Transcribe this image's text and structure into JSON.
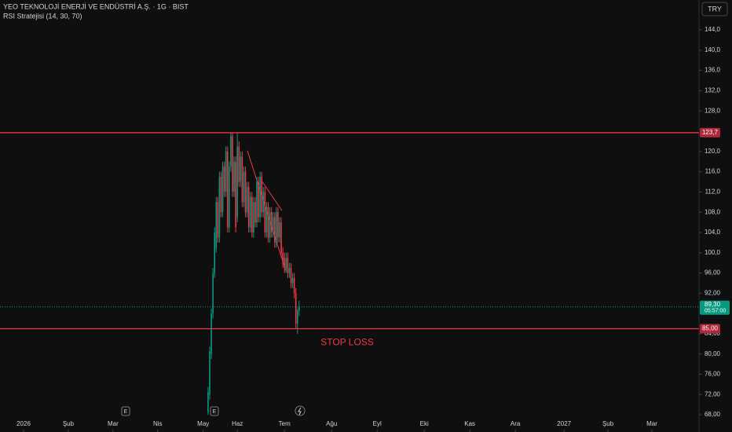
{
  "chart_data": {
    "type": "candlestick",
    "title": "YEO TEKNOLOJİ ENERJİ VE ENDÜSTRİ A.Ş. · 1G · BIST",
    "subtitle": "RSI Stratejisi (14, 30, 70)",
    "currency": "TRY",
    "up_color": "#089981",
    "down_color": "#f23645",
    "grid": false,
    "x": [
      128,
      129,
      130,
      131,
      132,
      133,
      134,
      135,
      136,
      137,
      138,
      139,
      140,
      141,
      142,
      143,
      144,
      145,
      146,
      147,
      148,
      149,
      150,
      151,
      152,
      153,
      154,
      155,
      156,
      157,
      158,
      159,
      160,
      161,
      162,
      163,
      164,
      165,
      166,
      167,
      168,
      169,
      170,
      171,
      172,
      173,
      174,
      175,
      176,
      177,
      178,
      179,
      180,
      181,
      182,
      183,
      184
    ],
    "open": [
      68.5,
      72,
      80,
      88,
      96,
      101,
      110,
      103,
      115,
      108,
      117,
      112,
      120,
      105,
      117,
      123,
      112,
      118,
      107,
      121,
      114,
      119,
      110,
      116,
      108,
      113,
      105,
      111,
      104,
      110,
      106,
      114,
      107,
      115,
      108,
      112,
      104,
      109,
      103,
      108,
      104,
      107,
      102,
      108,
      103,
      106,
      100,
      99,
      97,
      99,
      96,
      97,
      94,
      95,
      92,
      86,
      88.5
    ],
    "high": [
      73.5,
      81.5,
      89,
      97,
      105,
      111,
      111,
      116,
      116,
      118,
      118,
      121,
      121,
      118,
      123.7,
      123.7,
      119,
      119,
      123.7,
      122,
      120,
      120,
      117,
      117,
      114,
      114,
      112,
      112,
      111,
      111,
      115,
      115,
      116,
      116,
      113,
      113,
      110,
      110,
      109,
      109,
      108,
      108,
      109,
      109,
      107,
      107,
      101,
      100,
      100,
      100,
      98,
      98,
      96,
      96,
      93,
      89,
      90.5
    ],
    "low": [
      68,
      71,
      79,
      87,
      95,
      100,
      102,
      102,
      107,
      107,
      111,
      111,
      104,
      104,
      116,
      111,
      111,
      104,
      106,
      113,
      113,
      109,
      109,
      107,
      107,
      104,
      104,
      103,
      103,
      105,
      105,
      106,
      106,
      107,
      107,
      103,
      103,
      102,
      102,
      103,
      103,
      101,
      101,
      102,
      102,
      99,
      97,
      96,
      96,
      95,
      95,
      93,
      93,
      91,
      85,
      84,
      87.5
    ],
    "close": [
      72.5,
      80.5,
      88,
      96,
      104,
      110,
      103,
      115,
      108,
      117,
      112,
      120,
      105,
      117,
      123,
      112,
      118,
      105,
      121,
      114,
      119,
      110,
      116,
      108,
      113,
      105,
      111,
      104,
      110,
      106,
      114,
      107,
      115,
      108,
      112,
      104,
      109,
      103,
      108,
      104,
      107,
      102,
      108,
      103,
      106,
      100,
      98,
      97,
      99,
      96,
      97,
      94,
      95,
      92,
      86,
      88.5,
      89.3
    ],
    "xlim": [
      0,
      430
    ],
    "ylim": [
      64.6,
      149.9
    ],
    "xticks": [
      {
        "value": 14.5,
        "label": "2026"
      },
      {
        "value": 42,
        "label": "Şub"
      },
      {
        "value": 69.5,
        "label": "Mar"
      },
      {
        "value": 97,
        "label": "Nis"
      },
      {
        "value": 125,
        "label": "May"
      },
      {
        "value": 146,
        "label": "Haz"
      },
      {
        "value": 175,
        "label": "Tem"
      },
      {
        "value": 204,
        "label": "Ağu"
      },
      {
        "value": 232,
        "label": "Eyl"
      },
      {
        "value": 261,
        "label": "Eki"
      },
      {
        "value": 289,
        "label": "Kas"
      },
      {
        "value": 317,
        "label": "Ara"
      },
      {
        "value": 347,
        "label": "2027"
      },
      {
        "value": 374,
        "label": "Şub"
      },
      {
        "value": 401,
        "label": "Mar"
      }
    ],
    "yticks": [
      {
        "value": 144,
        "label": "144,0"
      },
      {
        "value": 140,
        "label": "140,0"
      },
      {
        "value": 136,
        "label": "136,0"
      },
      {
        "value": 132,
        "label": "132,0"
      },
      {
        "value": 128,
        "label": "128,0"
      },
      {
        "value": 120,
        "label": "120,0"
      },
      {
        "value": 116,
        "label": "116,0"
      },
      {
        "value": 112,
        "label": "112,0"
      },
      {
        "value": 108,
        "label": "108,0"
      },
      {
        "value": 104,
        "label": "104,0"
      },
      {
        "value": 100,
        "label": "100,0"
      },
      {
        "value": 96,
        "label": "96,00"
      },
      {
        "value": 92,
        "label": "92,00"
      },
      {
        "value": 84,
        "label": "84,00"
      },
      {
        "value": 80,
        "label": "80,00"
      },
      {
        "value": 76,
        "label": "76,00"
      },
      {
        "value": 72,
        "label": "72,00"
      },
      {
        "value": 68,
        "label": "68,00"
      }
    ],
    "hlines": [
      {
        "value": 123.7,
        "label": "123,7"
      },
      {
        "value": 85,
        "label": "85,00"
      }
    ],
    "last_price": {
      "value": 89.3,
      "label": "89,30"
    },
    "countdown": "05:57:00",
    "annotation": "STOP LOSS"
  }
}
